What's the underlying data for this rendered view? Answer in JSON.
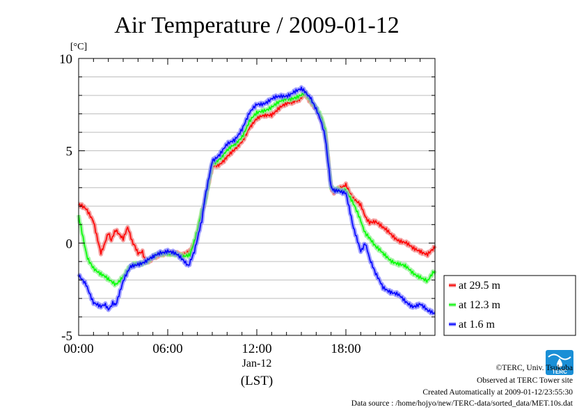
{
  "chart_data": {
    "type": "line",
    "title": "Air Temperature / 2009-01-12",
    "ylabel": "[°C]",
    "xlabel_date": "Jan-12",
    "xlabel_unit": "(LST)",
    "ylim": [
      -5,
      10
    ],
    "xlim": [
      0,
      24
    ],
    "y_ticks": [
      "10",
      "5",
      "0",
      "-5"
    ],
    "y_tick_values": [
      10,
      5,
      0,
      -5
    ],
    "x_ticks": [
      "00:00",
      "06:00",
      "12:00",
      "18:00"
    ],
    "x_tick_values": [
      0,
      6,
      12,
      18
    ],
    "grid": true,
    "legend_position": "right",
    "series": [
      {
        "name": "at 29.5 m",
        "color": "#ff0000",
        "band_color": "#f08080",
        "points": [
          [
            0.0,
            2.1
          ],
          [
            0.5,
            1.8
          ],
          [
            1.0,
            1.2
          ],
          [
            1.5,
            -0.5
          ],
          [
            1.7,
            -0.1
          ],
          [
            2.0,
            0.5
          ],
          [
            2.2,
            0.1
          ],
          [
            2.5,
            0.7
          ],
          [
            3.0,
            0.3
          ],
          [
            3.3,
            0.8
          ],
          [
            3.6,
            0.1
          ],
          [
            3.8,
            -0.2
          ],
          [
            4.0,
            -0.6
          ],
          [
            4.3,
            -0.4
          ],
          [
            4.5,
            -1.0
          ],
          [
            5.0,
            -0.8
          ],
          [
            5.5,
            -0.7
          ],
          [
            6.0,
            -0.5
          ],
          [
            6.5,
            -0.5
          ],
          [
            7.0,
            -0.7
          ],
          [
            7.4,
            -0.5
          ],
          [
            7.8,
            0.0
          ],
          [
            8.0,
            0.6
          ],
          [
            8.3,
            1.6
          ],
          [
            8.5,
            2.2
          ],
          [
            9.0,
            4.1
          ],
          [
            9.5,
            4.3
          ],
          [
            10.0,
            4.7
          ],
          [
            10.5,
            5.0
          ],
          [
            11.0,
            5.5
          ],
          [
            11.5,
            6.3
          ],
          [
            12.0,
            6.7
          ],
          [
            12.5,
            6.9
          ],
          [
            13.0,
            7.0
          ],
          [
            13.5,
            7.3
          ],
          [
            14.0,
            7.5
          ],
          [
            14.5,
            7.7
          ],
          [
            15.0,
            7.9
          ],
          [
            15.3,
            8.0
          ],
          [
            15.6,
            7.7
          ],
          [
            16.0,
            7.3
          ],
          [
            16.3,
            6.8
          ],
          [
            16.6,
            6.0
          ],
          [
            16.8,
            4.5
          ],
          [
            17.0,
            3.0
          ],
          [
            17.2,
            2.7
          ],
          [
            17.5,
            2.9
          ],
          [
            18.0,
            3.2
          ],
          [
            18.5,
            2.4
          ],
          [
            19.0,
            2.0
          ],
          [
            19.3,
            1.5
          ],
          [
            19.6,
            1.1
          ],
          [
            20.0,
            1.2
          ],
          [
            20.5,
            0.8
          ],
          [
            21.0,
            0.5
          ],
          [
            21.5,
            0.2
          ],
          [
            22.0,
            0.0
          ],
          [
            22.5,
            -0.3
          ],
          [
            23.0,
            -0.4
          ],
          [
            23.5,
            -0.6
          ],
          [
            24.0,
            -0.3
          ]
        ]
      },
      {
        "name": "at 12.3 m",
        "color": "#00ff00",
        "band_color": "#90ee90",
        "points": [
          [
            0.0,
            1.4
          ],
          [
            0.3,
            0.3
          ],
          [
            0.6,
            -0.8
          ],
          [
            1.0,
            -1.3
          ],
          [
            1.5,
            -1.7
          ],
          [
            2.0,
            -2.0
          ],
          [
            2.5,
            -2.2
          ],
          [
            3.0,
            -1.8
          ],
          [
            3.5,
            -1.3
          ],
          [
            4.0,
            -1.1
          ],
          [
            4.5,
            -1.0
          ],
          [
            5.0,
            -0.8
          ],
          [
            5.5,
            -0.6
          ],
          [
            6.0,
            -0.5
          ],
          [
            6.5,
            -0.6
          ],
          [
            7.0,
            -0.8
          ],
          [
            7.5,
            -0.6
          ],
          [
            8.0,
            0.7
          ],
          [
            8.3,
            1.7
          ],
          [
            8.5,
            2.1
          ],
          [
            9.0,
            4.3
          ],
          [
            9.5,
            4.6
          ],
          [
            10.0,
            5.0
          ],
          [
            10.5,
            5.3
          ],
          [
            11.0,
            5.8
          ],
          [
            11.5,
            6.6
          ],
          [
            12.0,
            7.0
          ],
          [
            12.5,
            7.2
          ],
          [
            13.0,
            7.4
          ],
          [
            13.5,
            7.6
          ],
          [
            14.0,
            7.8
          ],
          [
            14.5,
            7.9
          ],
          [
            15.0,
            8.0
          ],
          [
            15.3,
            8.1
          ],
          [
            15.6,
            7.8
          ],
          [
            16.0,
            7.4
          ],
          [
            16.3,
            6.9
          ],
          [
            16.6,
            6.1
          ],
          [
            16.8,
            4.5
          ],
          [
            17.0,
            3.0
          ],
          [
            17.2,
            2.8
          ],
          [
            17.5,
            2.9
          ],
          [
            18.0,
            2.9
          ],
          [
            18.5,
            2.1
          ],
          [
            19.0,
            1.2
          ],
          [
            19.3,
            0.6
          ],
          [
            19.6,
            0.2
          ],
          [
            20.0,
            -0.2
          ],
          [
            20.5,
            -0.6
          ],
          [
            21.0,
            -0.9
          ],
          [
            21.5,
            -1.1
          ],
          [
            22.0,
            -1.3
          ],
          [
            22.5,
            -1.6
          ],
          [
            23.0,
            -1.8
          ],
          [
            23.5,
            -2.1
          ],
          [
            24.0,
            -1.5
          ]
        ]
      },
      {
        "name": "at 1.6 m",
        "color": "#0000ff",
        "band_color": "#8080ff",
        "points": [
          [
            0.0,
            -1.8
          ],
          [
            0.5,
            -2.2
          ],
          [
            1.0,
            -3.2
          ],
          [
            1.5,
            -3.5
          ],
          [
            1.8,
            -3.3
          ],
          [
            2.0,
            -3.6
          ],
          [
            2.3,
            -3.2
          ],
          [
            2.5,
            -3.3
          ],
          [
            3.0,
            -2.1
          ],
          [
            3.5,
            -1.3
          ],
          [
            4.0,
            -1.1
          ],
          [
            4.5,
            -1.0
          ],
          [
            5.0,
            -0.8
          ],
          [
            5.5,
            -0.5
          ],
          [
            6.0,
            -0.4
          ],
          [
            6.5,
            -0.6
          ],
          [
            7.0,
            -0.9
          ],
          [
            7.4,
            -1.3
          ],
          [
            7.8,
            -0.5
          ],
          [
            8.0,
            0.2
          ],
          [
            8.3,
            1.2
          ],
          [
            8.5,
            2.4
          ],
          [
            9.0,
            4.5
          ],
          [
            9.5,
            4.8
          ],
          [
            10.0,
            5.3
          ],
          [
            10.5,
            5.6
          ],
          [
            11.0,
            6.2
          ],
          [
            11.5,
            7.0
          ],
          [
            12.0,
            7.5
          ],
          [
            12.5,
            7.6
          ],
          [
            13.0,
            7.8
          ],
          [
            13.5,
            7.9
          ],
          [
            14.0,
            8.0
          ],
          [
            14.5,
            8.2
          ],
          [
            15.0,
            8.3
          ],
          [
            15.3,
            8.2
          ],
          [
            15.6,
            7.9
          ],
          [
            16.0,
            7.3
          ],
          [
            16.3,
            6.6
          ],
          [
            16.6,
            5.8
          ],
          [
            16.8,
            4.4
          ],
          [
            17.0,
            3.0
          ],
          [
            17.2,
            2.8
          ],
          [
            17.5,
            2.9
          ],
          [
            18.0,
            2.7
          ],
          [
            18.5,
            0.8
          ],
          [
            19.0,
            -0.4
          ],
          [
            19.3,
            0.0
          ],
          [
            19.6,
            -0.9
          ],
          [
            20.0,
            -1.7
          ],
          [
            20.5,
            -2.4
          ],
          [
            21.0,
            -2.6
          ],
          [
            21.5,
            -2.8
          ],
          [
            22.0,
            -3.2
          ],
          [
            22.5,
            -3.4
          ],
          [
            23.0,
            -3.3
          ],
          [
            23.5,
            -3.7
          ],
          [
            24.0,
            -3.8
          ]
        ]
      }
    ]
  },
  "footer": {
    "copyright": "©TERC, Univ. Tsukuba",
    "observed": "Observed at TERC Tower site",
    "created": "Created Automatically at 2009-01-12/23:55:30",
    "source": "Data source : /home/hojyo/new/TERC-data/sorted_data/MET.10s.dat"
  },
  "logo_text": "TERC"
}
